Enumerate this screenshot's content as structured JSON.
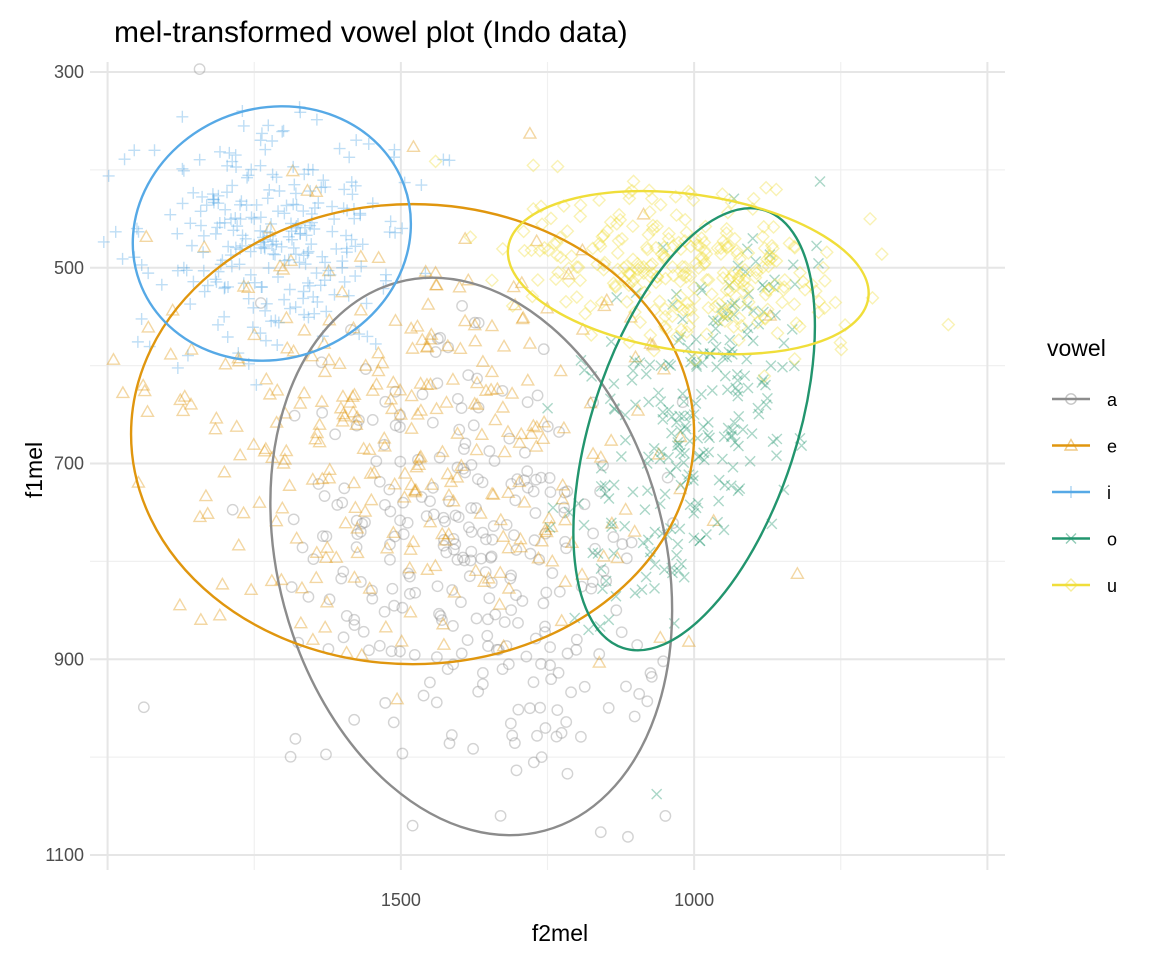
{
  "chart_data": {
    "type": "scatter",
    "title": "mel-transformed vowel plot (Indo data)",
    "xlabel": "f2mel",
    "ylabel": "f1mel",
    "x_reversed": true,
    "y_reversed": true,
    "xlim": [
      2030,
      470
    ],
    "ylim": [
      1100,
      300
    ],
    "x_major_ticks": [
      1500,
      1000
    ],
    "x_minor_ticks": [
      1750,
      1250,
      750
    ],
    "x_extra_major_gridlines": [
      2000,
      500
    ],
    "y_major_ticks": [
      300,
      500,
      700,
      900,
      1100
    ],
    "y_minor_ticks": [
      400,
      600,
      800,
      1000
    ],
    "grid": true,
    "legend": {
      "title": "vowel",
      "position": "right"
    },
    "series": [
      {
        "name": "a",
        "color": "#8c8c8c",
        "shape": "circle",
        "ellipse": {
          "center": [
            1380,
            795
          ],
          "f2_halfwidth": 330,
          "f1_halfwidth": 290,
          "tilt": -15
        },
        "sample_points": [
          [
            1600,
            740
          ],
          [
            1380,
            790
          ],
          [
            1430,
            860
          ],
          [
            1280,
            950
          ],
          [
            1200,
            880
          ],
          [
            1260,
            1000
          ],
          [
            1220,
            780
          ],
          [
            1330,
            1060
          ],
          [
            1480,
            1070
          ],
          [
            1150,
            820
          ]
        ]
      },
      {
        "name": "e",
        "color": "#e0960e",
        "shape": "triangle",
        "ellipse": {
          "center": [
            1480,
            670
          ],
          "f2_halfwidth": 480,
          "f1_halfwidth": 235,
          "tilt": 0
        },
        "sample_points": [
          [
            1500,
            650
          ],
          [
            1580,
            720
          ],
          [
            1420,
            580
          ],
          [
            1650,
            880
          ],
          [
            1700,
            700
          ],
          [
            1450,
            760
          ],
          [
            1370,
            640
          ],
          [
            1560,
            600
          ],
          [
            1720,
            820
          ],
          [
            1400,
            520
          ]
        ]
      },
      {
        "name": "i",
        "color": "#56a9e6",
        "shape": "plus",
        "ellipse": {
          "center": [
            1720,
            465
          ],
          "f2_halfwidth": 240,
          "f1_halfwidth": 128,
          "tilt": -20
        },
        "sample_points": [
          [
            1750,
            450
          ],
          [
            1800,
            520
          ],
          [
            1650,
            400
          ],
          [
            1920,
            380
          ],
          [
            1870,
            500
          ],
          [
            1600,
            500
          ],
          [
            1700,
            360
          ],
          [
            1820,
            430
          ],
          [
            1950,
            460
          ],
          [
            1580,
            440
          ]
        ]
      },
      {
        "name": "o",
        "color": "#22956e",
        "shape": "cross",
        "ellipse": {
          "center": [
            1000,
            665
          ],
          "f2_halfwidth": 175,
          "f1_halfwidth": 235,
          "tilt": 18
        },
        "sample_points": [
          [
            1000,
            650
          ],
          [
            950,
            550
          ],
          [
            1080,
            700
          ],
          [
            1150,
            820
          ],
          [
            900,
            470
          ],
          [
            1040,
            600
          ],
          [
            1180,
            870
          ],
          [
            960,
            760
          ],
          [
            1100,
            640
          ],
          [
            880,
            520
          ]
        ]
      },
      {
        "name": "u",
        "color": "#f0de3a",
        "shape": "diamond",
        "ellipse": {
          "center": [
            1010,
            505
          ],
          "f2_halfwidth": 310,
          "f1_halfwidth": 80,
          "tilt": 8
        },
        "sample_points": [
          [
            1000,
            520
          ],
          [
            900,
            440
          ],
          [
            1120,
            500
          ],
          [
            820,
            560
          ],
          [
            960,
            480
          ],
          [
            1200,
            530
          ],
          [
            860,
            420
          ],
          [
            700,
            450
          ],
          [
            1050,
            560
          ],
          [
            780,
            500
          ]
        ]
      }
    ]
  }
}
